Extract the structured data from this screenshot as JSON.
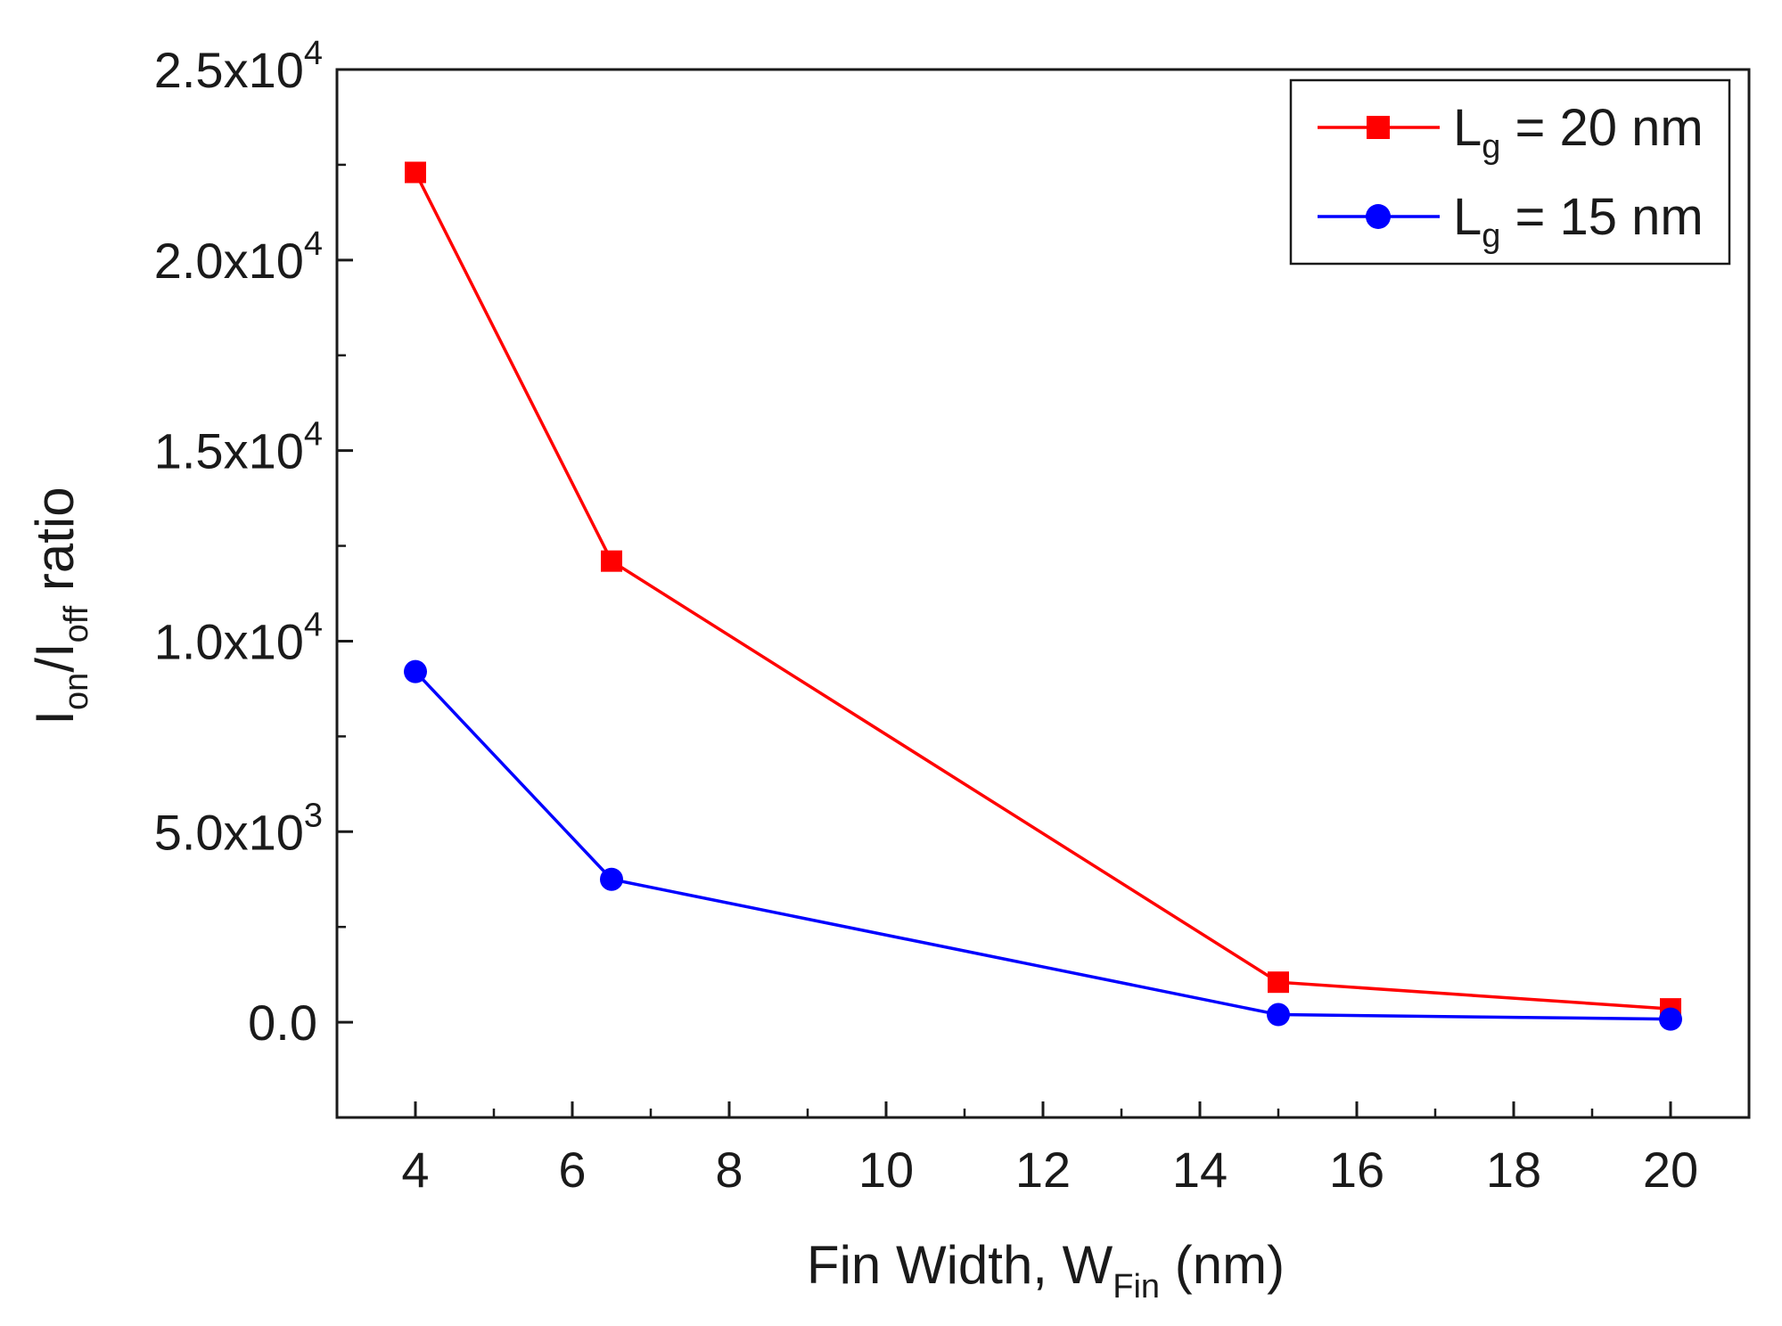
{
  "chart_data": {
    "type": "line",
    "title": "",
    "xlabel": {
      "main": "Fin Width, W",
      "sub": "Fin",
      "suffix": " (nm)"
    },
    "ylabel": {
      "i1": "I",
      "sub1": "on",
      "slash": "/I",
      "sub2": "off",
      "suffix": " ratio"
    },
    "xlim": [
      3,
      21
    ],
    "ylim": [
      -2500,
      25000
    ],
    "xticks": [
      4,
      6,
      8,
      10,
      12,
      14,
      16,
      18,
      20
    ],
    "yticks": [
      {
        "value": 0,
        "label": "0.0"
      },
      {
        "value": 5000,
        "label": "5.0x10",
        "exp": "3"
      },
      {
        "value": 10000,
        "label": "1.0x10",
        "exp": "4"
      },
      {
        "value": 15000,
        "label": "1.5x10",
        "exp": "4"
      },
      {
        "value": 20000,
        "label": "2.0x10",
        "exp": "4"
      },
      {
        "value": 25000,
        "label": "2.5x10",
        "exp": "4"
      }
    ],
    "legend_position": "top-right",
    "series": [
      {
        "name": "L",
        "name_sub": "g",
        "name_suffix": " = 20 nm",
        "color": "#ff0000",
        "marker": "square",
        "x": [
          4,
          6.5,
          15,
          20
        ],
        "y": [
          22300,
          12100,
          1050,
          350
        ]
      },
      {
        "name": "L",
        "name_sub": "g",
        "name_suffix": " = 15 nm",
        "color": "#0000ff",
        "marker": "circle",
        "x": [
          4,
          6.5,
          15,
          20
        ],
        "y": [
          9200,
          3750,
          200,
          80
        ]
      }
    ]
  }
}
